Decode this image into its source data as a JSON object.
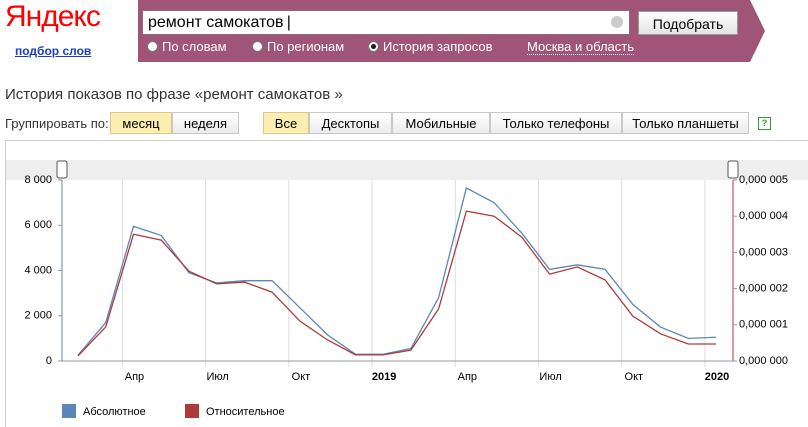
{
  "header": {
    "logo": "Яндекс",
    "subtitle": "подбор слов",
    "query": "ремонт самокатов",
    "button": "Подобрать",
    "tabs": [
      "По словам",
      "По регионам",
      "История запросов"
    ],
    "region": "Москва и область"
  },
  "heading": "История показов по фразе «ремонт самокатов »",
  "grouping": {
    "label": "Группировать по:",
    "options": [
      "месяц",
      "неделя"
    ]
  },
  "devices": [
    "Все",
    "Десктопы",
    "Мобильные",
    "Только телефоны",
    "Только планшеты"
  ],
  "help": "?",
  "chart_data": {
    "type": "line",
    "categories": [
      null,
      null,
      "Апр",
      null,
      null,
      "Июл",
      null,
      null,
      "Окт",
      null,
      null,
      "2019",
      null,
      null,
      "Апр",
      null,
      null,
      "Июл",
      null,
      null,
      "Окт",
      null,
      null,
      "2020"
    ],
    "series": [
      {
        "name": "Абсолютное",
        "color": "#5b87b6",
        "values": [
          250,
          1700,
          5950,
          5550,
          3900,
          3450,
          3550,
          3550,
          2350,
          1150,
          300,
          300,
          550,
          2800,
          7650,
          7000,
          5650,
          4050,
          4250,
          4050,
          2500,
          1500,
          1000,
          1050
        ]
      },
      {
        "name": "Относительное",
        "color": "#b03a3a",
        "axis": "y2",
        "values": [
          1.4e-07,
          9.4e-07,
          3.5e-06,
          3.34e-06,
          2.48e-06,
          2.13e-06,
          2.18e-06,
          1.9e-06,
          1.1e-06,
          5.8e-07,
          1.7e-07,
          1.7e-07,
          3e-07,
          1.44e-06,
          4.14e-06,
          4e-06,
          3.42e-06,
          2.4e-06,
          2.6e-06,
          2.24e-06,
          1.24e-06,
          7.5e-07,
          4.7e-07,
          4.7e-07
        ]
      }
    ],
    "ylim": [
      0,
      8000
    ],
    "yticks": [
      0,
      {
        "value": 2000,
        "label": "2 000"
      },
      {
        "value": 4000,
        "label": "4 000"
      },
      {
        "value": 6000,
        "label": "6 000"
      },
      {
        "value": 8000,
        "label": "8 000"
      }
    ],
    "y2lim": [
      0,
      5e-06
    ],
    "y2ticks": [
      {
        "value": 0,
        "label": "0,000 000"
      },
      {
        "value": 1e-06,
        "label": "0,000 001"
      },
      {
        "value": 2e-06,
        "label": "0,000 002"
      },
      {
        "value": 3e-06,
        "label": "0,000 003"
      },
      {
        "value": 4e-06,
        "label": "0,000 004"
      },
      {
        "value": 5e-06,
        "label": "0,000 005"
      }
    ]
  }
}
